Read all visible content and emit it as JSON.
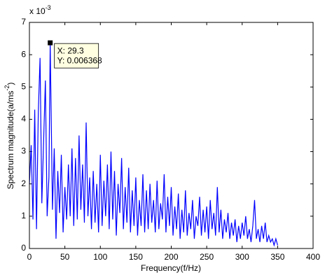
{
  "chart_data": {
    "type": "line",
    "xlabel": "Frequency(f/Hz)",
    "ylabel": {
      "text": "Spectrum magnitude(a/ms",
      "sup": "-2",
      "end": ")"
    },
    "y_exponent": {
      "base": "x 10",
      "sup": "-3"
    },
    "annotation": {
      "lines": [
        "X: 29.3",
        "Y: 0.006368"
      ],
      "point": 12
    },
    "xlim": [
      0,
      400
    ],
    "xticks": [
      0,
      50,
      100,
      150,
      200,
      250,
      300,
      350,
      400
    ],
    "ylim": [
      0,
      7
    ],
    "yticks": [
      0,
      1,
      2,
      3,
      4,
      5,
      6,
      7
    ],
    "grid": false,
    "x": [
      0,
      2.5,
      5,
      7.5,
      10,
      12.5,
      15,
      17.5,
      20,
      22.5,
      25,
      27.5,
      29.3,
      32.5,
      35,
      37.5,
      40,
      42.5,
      45,
      47.5,
      50,
      52.5,
      55,
      57.5,
      60,
      62.5,
      65,
      67.5,
      70,
      72.5,
      75,
      77.5,
      80,
      82.5,
      85,
      87.5,
      90,
      92.5,
      95,
      97.5,
      100,
      102.5,
      105,
      107.5,
      110,
      112.5,
      115,
      117.5,
      120,
      122.5,
      125,
      127.5,
      130,
      132.5,
      135,
      137.5,
      140,
      142.5,
      145,
      147.5,
      150,
      152.5,
      155,
      157.5,
      160,
      162.5,
      165,
      167.5,
      170,
      172.5,
      175,
      177.5,
      180,
      182.5,
      185,
      187.5,
      190,
      192.5,
      195,
      197.5,
      200,
      202.5,
      205,
      207.5,
      210,
      212.5,
      215,
      217.5,
      220,
      222.5,
      225,
      227.5,
      230,
      232.5,
      235,
      237.5,
      240,
      242.5,
      245,
      247.5,
      250,
      252.5,
      255,
      257.5,
      260,
      262.5,
      265,
      267.5,
      270,
      272.5,
      275,
      277.5,
      280,
      282.5,
      285,
      287.5,
      290,
      292.5,
      295,
      297.5,
      300,
      302.5,
      305,
      307.5,
      310,
      312.5,
      315,
      317.5,
      320,
      322.5,
      325,
      327.5,
      330,
      332.5,
      335,
      337.5,
      340,
      342.5,
      345,
      347.5,
      350
    ],
    "series": [
      {
        "color": "#0000ff",
        "values": [
          2.0,
          3.2,
          0.9,
          4.3,
          0.6,
          4.2,
          5.9,
          1.4,
          3.3,
          5.2,
          1.0,
          2.2,
          6.368,
          1.2,
          3.1,
          0.3,
          2.4,
          1.1,
          2.9,
          0.5,
          1.9,
          0.9,
          2.6,
          1.0,
          3.1,
          0.7,
          2.8,
          0.9,
          3.5,
          1.2,
          2.6,
          0.8,
          3.9,
          1.0,
          2.2,
          0.6,
          2.4,
          0.8,
          2.0,
          0.5,
          2.9,
          0.7,
          2.1,
          1.0,
          2.6,
          0.6,
          3.0,
          0.9,
          2.4,
          0.4,
          2.0,
          1.1,
          2.8,
          0.6,
          1.9,
          0.8,
          2.5,
          0.5,
          1.8,
          0.7,
          2.2,
          0.4,
          1.5,
          0.7,
          2.3,
          0.5,
          1.8,
          0.6,
          2.0,
          0.8,
          1.5,
          0.5,
          2.1,
          0.6,
          1.4,
          0.9,
          2.3,
          0.5,
          1.6,
          0.7,
          1.9,
          0.4,
          1.3,
          0.6,
          1.7,
          0.3,
          1.2,
          0.5,
          1.8,
          0.4,
          1.1,
          0.6,
          1.5,
          0.3,
          1.0,
          0.7,
          1.6,
          0.4,
          1.2,
          0.5,
          1.3,
          0.3,
          1.5,
          0.6,
          1.1,
          0.4,
          1.9,
          0.5,
          1.2,
          0.3,
          0.9,
          0.5,
          1.1,
          0.3,
          0.8,
          0.4,
          0.9,
          0.2,
          0.7,
          0.3,
          0.8,
          0.4,
          1.0,
          0.3,
          0.6,
          0.2,
          0.7,
          1.5,
          0.3,
          0.6,
          0.2,
          0.7,
          0.3,
          0.8,
          0.2,
          0.4,
          0.2,
          0.3,
          0.1,
          0.3,
          0.1
        ]
      }
    ]
  }
}
